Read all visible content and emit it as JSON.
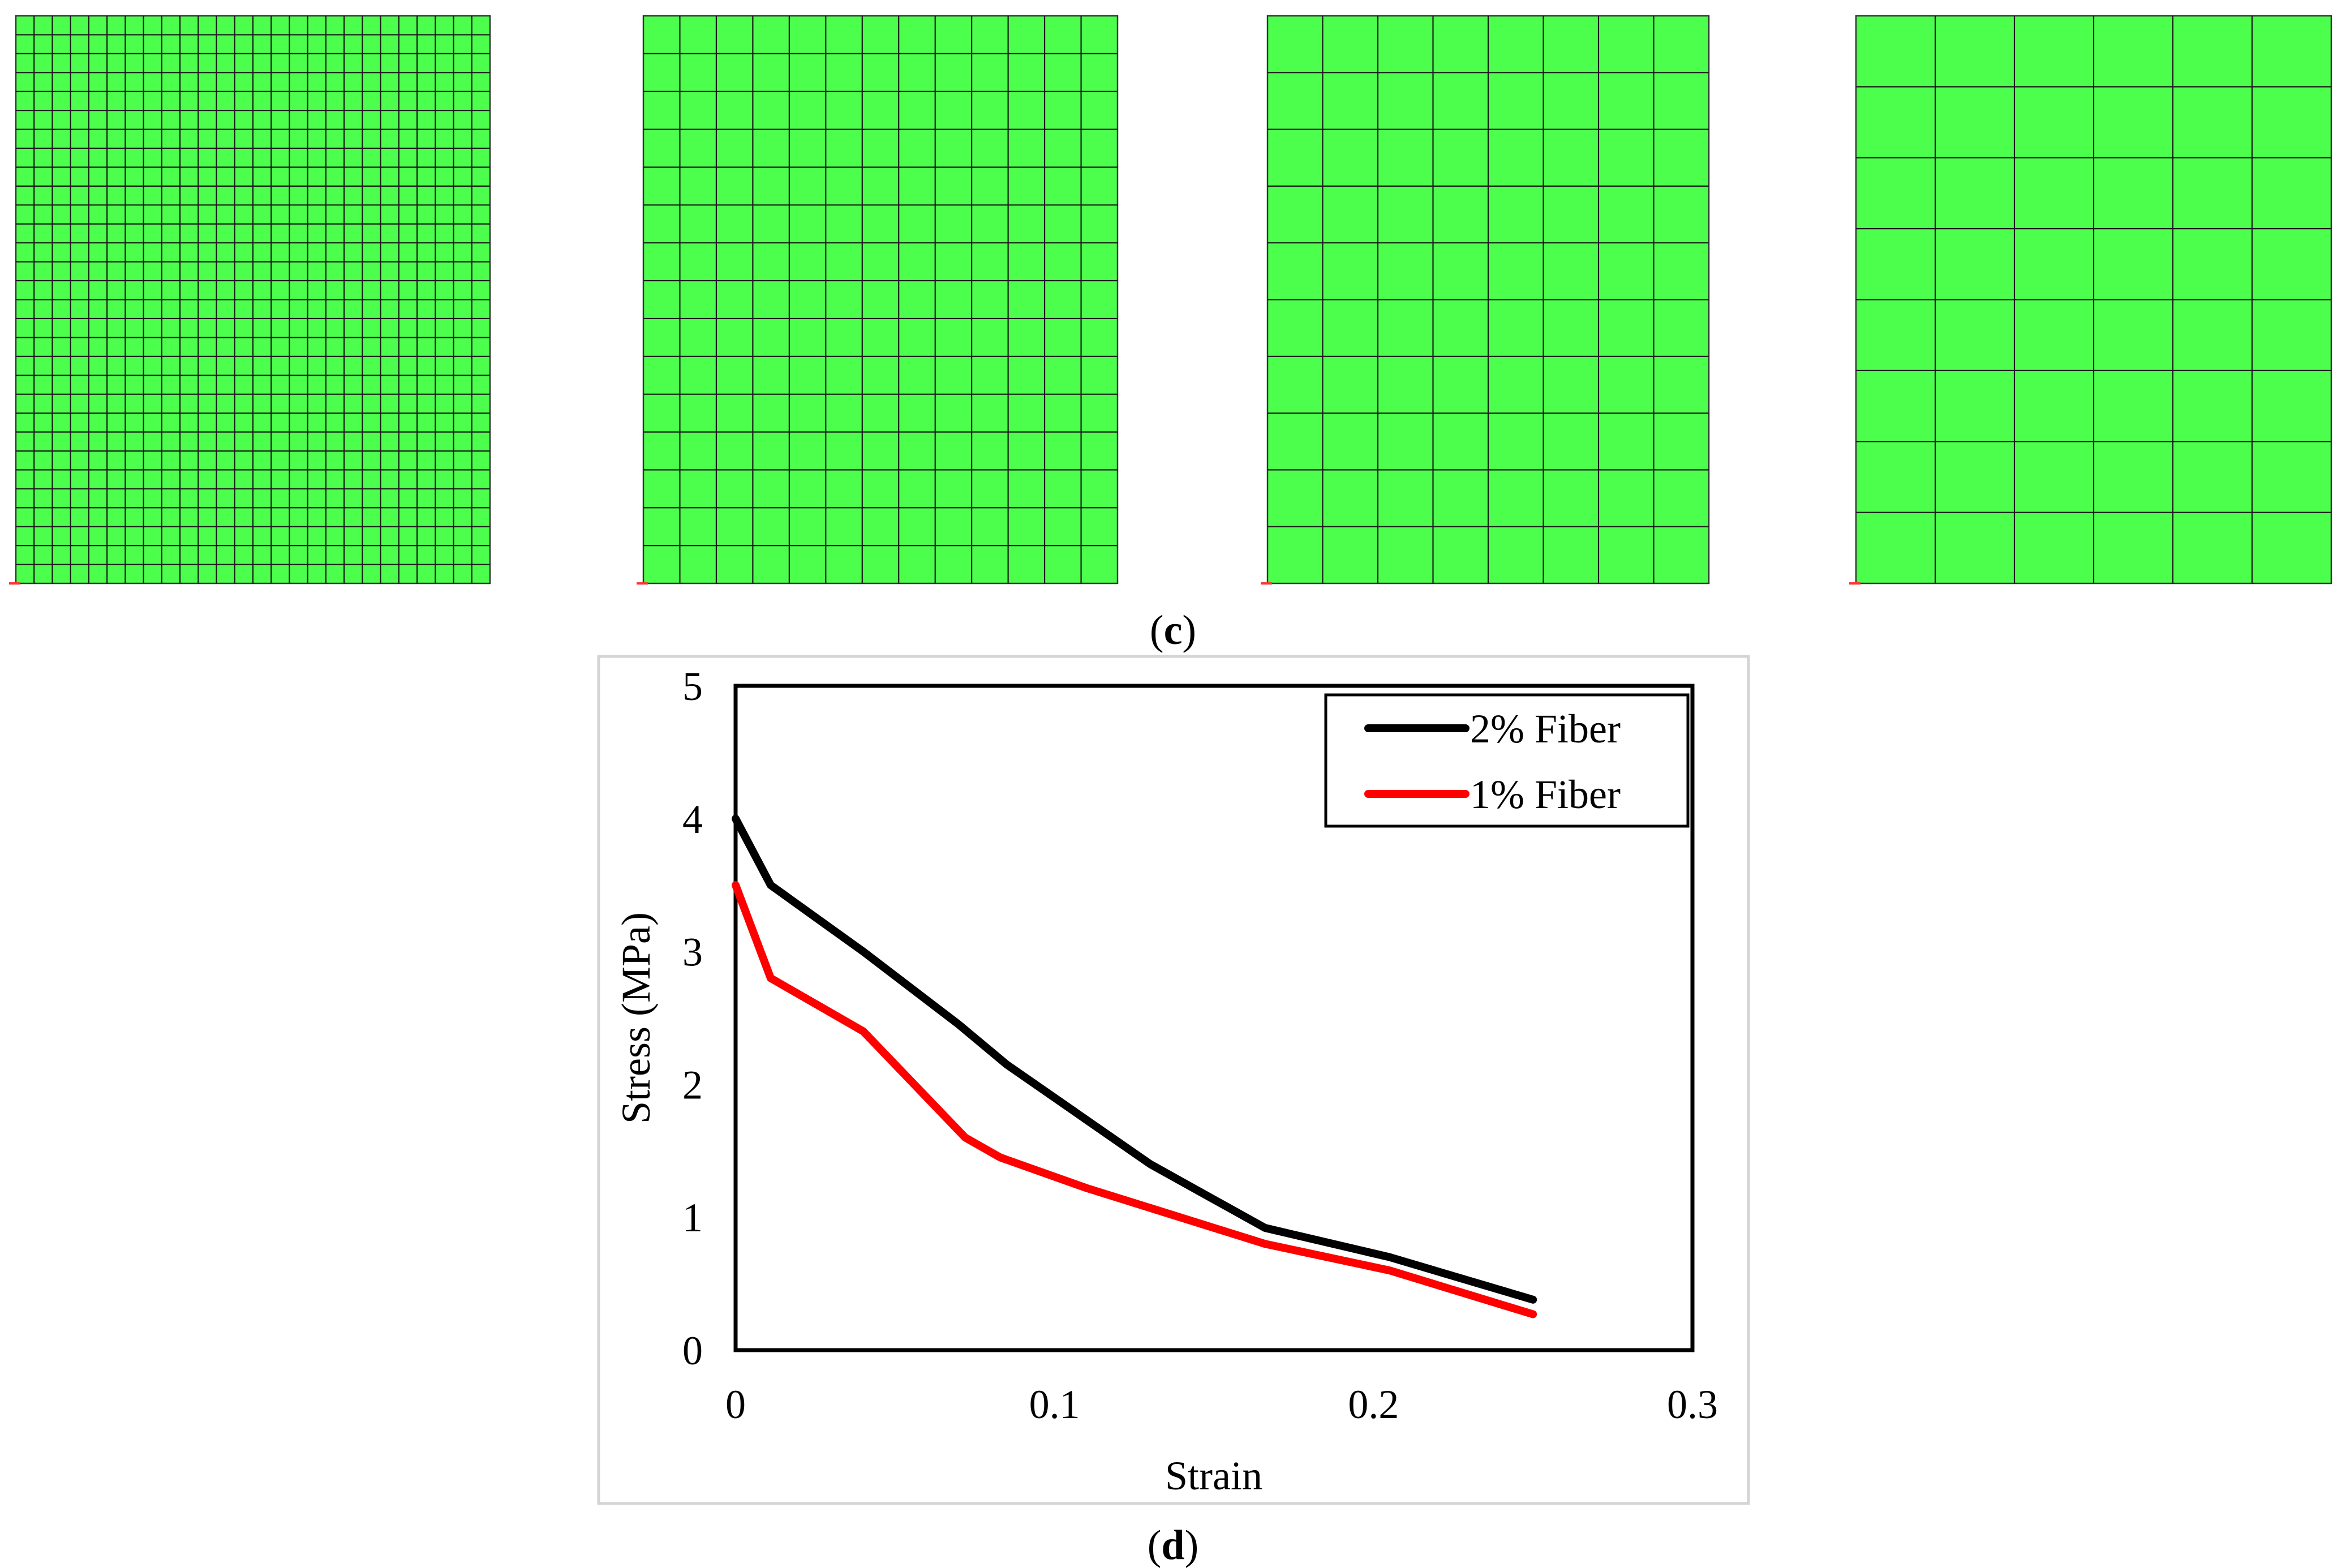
{
  "figure": {
    "panel_c_label": {
      "open": "(",
      "letter": "c",
      "close": ")"
    },
    "panel_d_label": {
      "open": "(",
      "letter": "d",
      "close": ")"
    },
    "mesh_panels": [
      {
        "name": "mesh-fine",
        "columns": 26,
        "rows": 30
      },
      {
        "name": "mesh-medium",
        "columns": 13,
        "rows": 15
      },
      {
        "name": "mesh-coarse",
        "columns": 8,
        "rows": 10
      },
      {
        "name": "mesh-coarsest",
        "columns": 6,
        "rows": 8
      }
    ],
    "mesh_fill_color": "#4dff4d"
  },
  "chart_data": {
    "type": "line",
    "title": "",
    "xlabel": "Strain",
    "ylabel": "Stress (MPa)",
    "xlim": [
      0,
      0.3
    ],
    "ylim": [
      0,
      5
    ],
    "xticks": [
      0,
      0.1,
      0.2,
      0.3
    ],
    "xtick_labels": [
      "0",
      "0.1",
      "0.2",
      "0.3"
    ],
    "yticks": [
      0,
      1,
      2,
      3,
      4,
      5
    ],
    "ytick_labels": [
      "0",
      "1",
      "2",
      "3",
      "4",
      "5"
    ],
    "grid": false,
    "legend_position": "top-right",
    "series": [
      {
        "name": "2% Fiber",
        "color": "#000000",
        "x": [
          0,
          0.011,
          0.04,
          0.07,
          0.085,
          0.13,
          0.166,
          0.205,
          0.25
        ],
        "y": [
          4.0,
          3.5,
          3.0,
          2.45,
          2.15,
          1.4,
          0.92,
          0.7,
          0.38
        ]
      },
      {
        "name": "1% Fiber",
        "color": "#ff0000",
        "x": [
          0,
          0.011,
          0.04,
          0.072,
          0.083,
          0.11,
          0.166,
          0.205,
          0.25
        ],
        "y": [
          3.5,
          2.8,
          2.4,
          1.6,
          1.45,
          1.22,
          0.8,
          0.6,
          0.27
        ]
      }
    ]
  }
}
